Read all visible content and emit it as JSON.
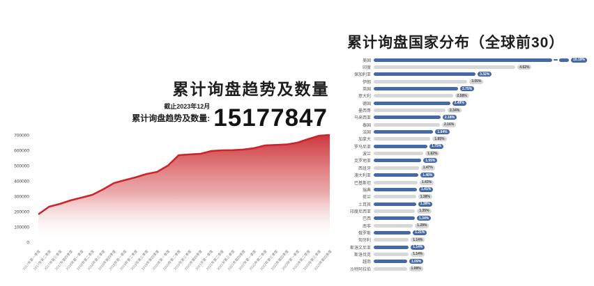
{
  "left_chart": {
    "title": "累计询盘趋势及数量",
    "as_of": "截止2023年12月",
    "total_label": "累计询盘趋势及数量:",
    "total_value": "15177847"
  },
  "right_chart": {
    "title": "累计询盘国家分布（全球前30）"
  },
  "colors": {
    "area_line": "#c9252b",
    "bar_blue": "#4568a7",
    "bar_gray": "#d7d7d7",
    "text_dark": "#1d1d1d"
  },
  "chart_data": [
    {
      "type": "area",
      "title": "累计询盘趋势及数量",
      "x": [
        "2017年第一季度",
        "2017年第二季度",
        "2017年第三季度",
        "2017年第四季度",
        "2018年第一季度",
        "2018年第二季度",
        "2018年第三季度",
        "2018年第四季度",
        "2019年第一季度",
        "2019年第二季度",
        "2019年第三季度",
        "2019年第四季度",
        "2020年第一季度",
        "2020年第二季度",
        "2020年第三季度",
        "2020年第四季度",
        "2021年第一季度",
        "2021年第二季度",
        "2021年第三季度",
        "2021年第四季度",
        "2022年第一季度",
        "2022年第二季度",
        "2022年第三季度",
        "2022年第四季度",
        "2023年第一季度",
        "2023年第二季度",
        "2023年第三季度",
        "2023年第四季度"
      ],
      "values": [
        182000,
        232000,
        250000,
        273000,
        291000,
        309000,
        345000,
        386000,
        405000,
        423000,
        445000,
        459000,
        500000,
        568000,
        573000,
        577000,
        595000,
        600000,
        601000,
        605000,
        614000,
        632000,
        635000,
        638000,
        650000,
        673000,
        695000,
        700000
      ],
      "ylim": [
        0,
        700000
      ],
      "yticks": [
        0,
        100000,
        200000,
        300000,
        400000,
        500000,
        600000,
        700000
      ],
      "grid": false,
      "legend": "none",
      "fill": "red gradient fading to white"
    },
    {
      "type": "bar",
      "orientation": "horizontal",
      "title": "累计询盘国家分布（全球前30）",
      "categories": [
        "美国",
        "印度",
        "保加利亚",
        "伊朗",
        "英国",
        "意大利",
        "德国",
        "墨西哥",
        "马来西亚",
        "泰国",
        "法国",
        "加拿大",
        "罗马尼亚",
        "波兰",
        "克罗地亚",
        "西班牙",
        "澳大利亚",
        "巴基斯坦",
        "瑞典",
        "荷兰",
        "土耳其",
        "印度尼西亚",
        "巴西",
        "南非",
        "俄罗斯",
        "匈牙利",
        "斯洛文尼亚",
        "斯洛伐克",
        "越南",
        "沙特阿拉伯"
      ],
      "values": [
        10.19,
        4.62,
        3.32,
        3.05,
        2.75,
        2.58,
        2.49,
        2.34,
        2.18,
        2.16,
        1.94,
        1.85,
        1.75,
        1.62,
        1.55,
        1.47,
        1.46,
        1.43,
        1.41,
        1.38,
        1.38,
        1.35,
        1.34,
        1.28,
        1.21,
        1.14,
        1.14,
        1.14,
        1.09,
        1.08
      ],
      "labels": [
        "10.19%",
        "4.62%",
        "3.32%",
        "3.05%",
        "2.75%",
        "2.58%",
        "2.49%",
        "2.34%",
        "2.18%",
        "2.16%",
        "1.94%",
        "1.85%",
        "1.75%",
        "1.62%",
        "1.55%",
        "1.47%",
        "1.46%",
        "1.43%",
        "1.41%",
        "1.38%",
        "1.38%",
        "1.35%",
        "1.34%",
        "1.28%",
        "1.21%",
        "1.14%",
        "1.14%",
        "1.14%",
        "1.09%",
        "1.08%"
      ],
      "bar_color_pattern": "alternating blue/gray by row",
      "axis_break_on": "美国",
      "legend": "none"
    }
  ]
}
